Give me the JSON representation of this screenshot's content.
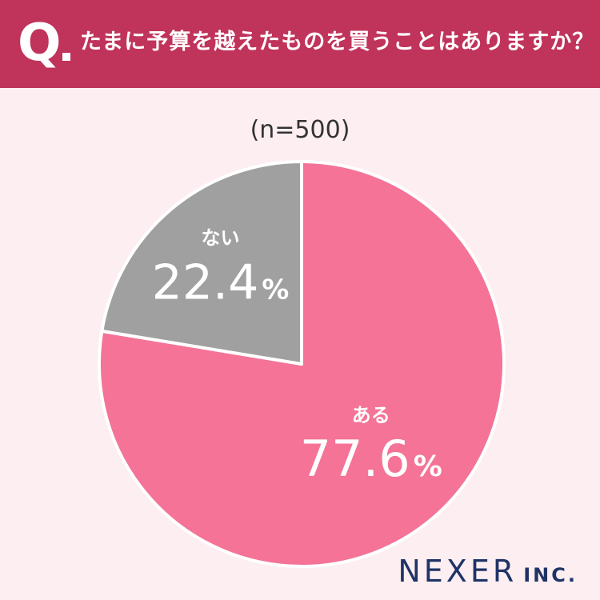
{
  "header": {
    "q_mark": "Q",
    "question": "たまに予算を越えたものを買うことはありますか？"
  },
  "sample_size": "(n=500)",
  "colors": {
    "header_bg": "#c0335a",
    "background": "#fdeef1",
    "slice_yes": "#f47396",
    "slice_no": "#a0a0a0"
  },
  "chart_data": {
    "type": "pie",
    "start": "12 o'clock",
    "direction": "clockwise",
    "slices": [
      {
        "label": "ある",
        "value": 77.6,
        "display": "77.6",
        "unit": "%",
        "color": "#f47396"
      },
      {
        "label": "ない",
        "value": 22.4,
        "display": "22.4",
        "unit": "%",
        "color": "#a0a0a0"
      }
    ]
  },
  "logo": {
    "main": "NEXER",
    "sub": "INC."
  }
}
